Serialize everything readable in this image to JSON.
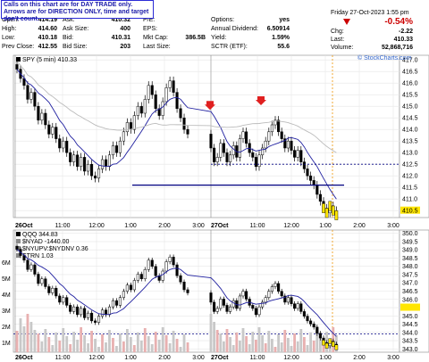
{
  "notice": {
    "line1": "Calls on this chart are for DAY TRADE only.",
    "line2": "Arrows are for DIRECTION ONLY, time and target don't count."
  },
  "quote": {
    "rows": [
      {
        "l1": "Open:",
        "v1": "414.19",
        "l2": "Ask:",
        "v2": "410.32",
        "l3": "P/E:",
        "v3": "",
        "l4": "Options:",
        "v4": "yes"
      },
      {
        "l1": "High:",
        "v1": "414.60",
        "l2": "Ask Size:",
        "v2": "400",
        "l3": "EPS:",
        "v3": "",
        "l4": "Annual Dividend:",
        "v4": "6.50914"
      },
      {
        "l1": "Low:",
        "v1": "410.18",
        "l2": "Bid:",
        "v2": "410.31",
        "l3": "Mkt Cap:",
        "v3": "386.5B",
        "l4": "Yield:",
        "v4": "1.59%"
      },
      {
        "l1": "Prev Close:",
        "v1": "412.55",
        "l2": "Bid Size:",
        "v2": "203",
        "l3": "Last Size:",
        "v3": "",
        "l4": "SCTR (ETF):",
        "v4": "55.6"
      }
    ],
    "datetime": "Friday  27-Oct-2023  1:55 pm",
    "change_pct": "-0.54%",
    "chg_label": "Chg:",
    "chg": "-2.22",
    "last_label": "Last:",
    "last": "410.33",
    "volume_label": "Volume:",
    "volume": "52,868,716",
    "down_color": "#cc0000"
  },
  "watermark": "© StockCharts.com",
  "top_legend": "SPY (5 min) 410.33",
  "bottom_legend": [
    "QQQ 344.83",
    "$NYAD -1440.00",
    "$NYUPV:$NYDNV 0.36",
    "STRN 1.03"
  ],
  "chart_data": [
    {
      "type": "candlestick",
      "title": "SPY (5 min) 410.33",
      "y_ticks": [
        410.5,
        411.0,
        411.5,
        412.0,
        412.5,
        413.0,
        413.5,
        414.0,
        414.5,
        415.0,
        415.5,
        416.0,
        416.5,
        417.0
      ],
      "ylim": [
        410.2,
        417.2
      ],
      "x_ticks": [
        "26Oct",
        "11:00",
        "12:00",
        "1:00",
        "2:00",
        "3:00",
        "27Oct",
        "11:00",
        "12:00",
        "1:00",
        "2:00",
        "3:00"
      ],
      "sessions": [
        {
          "label": "26Oct",
          "closes": [
            416.6,
            416.2,
            415.9,
            415.3,
            415.6,
            415.0,
            414.4,
            414.7,
            414.2,
            413.8,
            414.1,
            413.6,
            413.2,
            413.5,
            413.0,
            412.6,
            412.9,
            412.4,
            412.8,
            412.2,
            412.5,
            412.0,
            411.9,
            412.3,
            412.7,
            412.4,
            412.9,
            413.3,
            413.0,
            413.5,
            413.9,
            414.3,
            414.0,
            414.6,
            415.0,
            414.7,
            415.3,
            415.9,
            415.5,
            414.9,
            414.6,
            415.2,
            415.8,
            416.1,
            415.6,
            414.9,
            414.5,
            414.0,
            413.8
          ]
        },
        {
          "label": "27Oct",
          "closes": [
            413.2,
            412.6,
            412.8,
            413.4,
            413.0,
            412.6,
            412.9,
            413.3,
            412.8,
            413.6,
            413.9,
            413.4,
            413.0,
            412.8,
            412.4,
            412.9,
            413.2,
            413.5,
            413.9,
            414.2,
            414.4,
            413.9,
            413.6,
            413.2,
            413.5,
            413.1,
            412.8,
            413.1,
            412.6,
            412.3,
            412.0,
            411.8,
            411.6,
            411.2,
            410.9,
            410.6,
            410.4,
            410.7,
            410.5,
            410.3
          ]
        }
      ],
      "series": [
        {
          "name": "",
          "kind": "moving-average",
          "color": "#2020a0"
        },
        {
          "name": "",
          "kind": "moving-average",
          "color": "#bbbbbb"
        }
      ],
      "horizontal_lines": [
        {
          "y": 411.6,
          "color": "#000080",
          "style": "solid"
        },
        {
          "y": 412.5,
          "color": "#000080",
          "style": "dashed"
        }
      ],
      "down_arrows": [
        {
          "session": 1,
          "index": 2,
          "y": 415.0
        },
        {
          "session": 1,
          "index": 14,
          "y": 415.2
        }
      ],
      "highlight_price_label": "410.5",
      "grid": true
    },
    {
      "type": "candlestick",
      "title": "QQQ 344.83",
      "y_ticks": [
        343.0,
        343.5,
        344.0,
        344.5,
        345.0,
        345.5,
        346.0,
        346.5,
        347.0,
        347.5,
        348.0,
        348.5,
        349.0,
        349.5,
        350.0
      ],
      "ylim": [
        342.8,
        350.2
      ],
      "volume_ticks": [
        "1M",
        "2M",
        "3M",
        "4M",
        "5M",
        "6M"
      ],
      "series": [
        {
          "name": "",
          "kind": "moving-average",
          "color": "#2020a0"
        }
      ],
      "horizontal_lines": [
        {
          "y": 343.9,
          "color": "#000080",
          "style": "dashed"
        }
      ],
      "grid": true
    }
  ]
}
